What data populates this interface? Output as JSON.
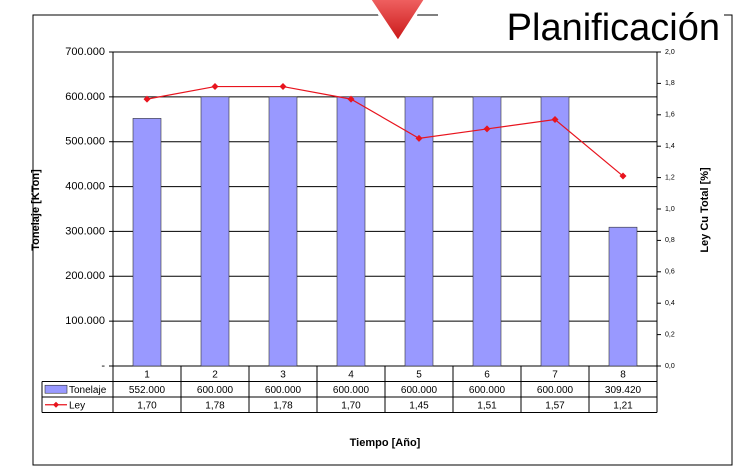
{
  "chart_data": {
    "type": "bar",
    "title": "Planificación",
    "y_label": "Tonelaje [KTon]",
    "y2_label": "Ley Cu Total [%]",
    "x_label": "Tiempo [Año]",
    "categories": [
      "1",
      "2",
      "3",
      "4",
      "5",
      "6",
      "7",
      "8"
    ],
    "series": [
      {
        "name": "Tonelaje",
        "type": "bar",
        "color": "#9999ff",
        "values": [
          552000,
          600000,
          600000,
          600000,
          600000,
          600000,
          600000,
          309420
        ],
        "value_labels": [
          "552.000",
          "600.000",
          "600.000",
          "600.000",
          "600.000",
          "600.000",
          "600.000",
          "309.420"
        ]
      },
      {
        "name": "Ley",
        "type": "line",
        "axis": "y2",
        "color": "#e8141e",
        "values": [
          1.7,
          1.78,
          1.78,
          1.7,
          1.45,
          1.51,
          1.57,
          1.21
        ],
        "value_labels": [
          "1,70",
          "1,78",
          "1,78",
          "1,70",
          "1,45",
          "1,51",
          "1,57",
          "1,21"
        ]
      }
    ],
    "ylim": [
      0,
      700000
    ],
    "yticks": [
      {
        "value": 0,
        "label": "-"
      },
      {
        "value": 100000,
        "label": "100.000"
      },
      {
        "value": 200000,
        "label": "200.000"
      },
      {
        "value": 300000,
        "label": "300.000"
      },
      {
        "value": 400000,
        "label": "400.000"
      },
      {
        "value": 500000,
        "label": "500.000"
      },
      {
        "value": 600000,
        "label": "600.000"
      },
      {
        "value": 700000,
        "label": "700.000"
      }
    ],
    "y2lim": [
      0,
      2
    ],
    "y2ticks": [
      {
        "value": 0,
        "label": "0,0"
      },
      {
        "value": 0.2,
        "label": "0,2"
      },
      {
        "value": 0.4,
        "label": "0,4"
      },
      {
        "value": 0.6,
        "label": "0,6"
      },
      {
        "value": 0.8,
        "label": "0,8"
      },
      {
        "value": 1,
        "label": "1,0"
      },
      {
        "value": 1.2,
        "label": "1,2"
      },
      {
        "value": 1.4,
        "label": "1,4"
      },
      {
        "value": 1.6,
        "label": "1,6"
      },
      {
        "value": 1.8,
        "label": "1,8"
      },
      {
        "value": 2,
        "label": "2,0"
      }
    ],
    "grid": true
  }
}
